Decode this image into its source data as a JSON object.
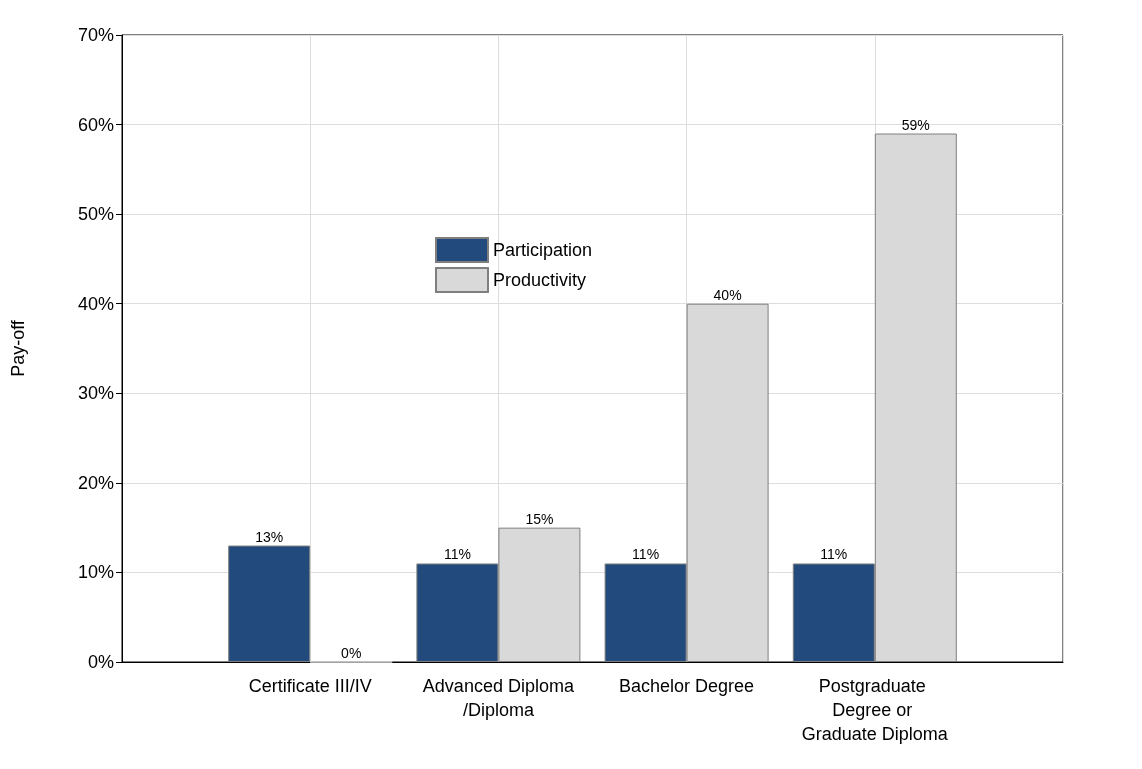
{
  "chart_data": {
    "type": "bar",
    "ylabel": "Pay-off",
    "categories": [
      "Certificate III/IV",
      "Advanced Diploma/Diploma",
      "Bachelor Degree",
      "Postgraduate Degree or Graduate Diploma"
    ],
    "series": [
      {
        "name": "Participation",
        "color": "#234a7c",
        "values": [
          13,
          11,
          11,
          11
        ],
        "value_labels": [
          "13%",
          "11%",
          "11%",
          "11%"
        ]
      },
      {
        "name": "Productivity",
        "color": "#d9d9d9",
        "values": [
          0,
          15,
          40,
          59
        ],
        "value_labels": [
          "0%",
          "15%",
          "40%",
          "59%"
        ]
      }
    ],
    "ylim": [
      0,
      70
    ],
    "yticks": [
      {
        "value": 0,
        "label": "0%"
      },
      {
        "value": 10,
        "label": "10%"
      },
      {
        "value": 20,
        "label": "20%"
      },
      {
        "value": 30,
        "label": "30%"
      },
      {
        "value": 40,
        "label": "40%"
      },
      {
        "value": 50,
        "label": "50%"
      },
      {
        "value": 60,
        "label": "60%"
      },
      {
        "value": 70,
        "label": "70%"
      }
    ],
    "grid": true,
    "legend": "center"
  }
}
